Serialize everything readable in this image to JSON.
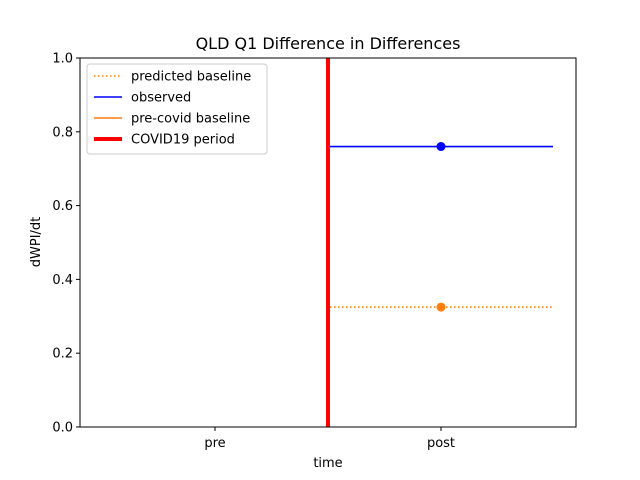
{
  "chart_data": {
    "type": "line",
    "title": "QLD Q1 Difference in Differences",
    "xlabel": "time",
    "ylabel": "dWPI/dt",
    "categories": [
      "pre",
      "post"
    ],
    "ylim": [
      0,
      1.0
    ],
    "yticks": [
      "0.0",
      "0.2",
      "0.4",
      "0.6",
      "0.8",
      "1.0"
    ],
    "grid": false,
    "legend_placement": "top-left",
    "series": [
      {
        "name": "predicted baseline",
        "style": "dotted",
        "color": "#ff7f0e",
        "x_range": [
          "covid",
          "post-end"
        ],
        "value": 0.325,
        "marker_at": "post"
      },
      {
        "name": "observed",
        "style": "solid",
        "color": "#0000ff",
        "x_range": [
          "covid",
          "post-end"
        ],
        "value": 0.76,
        "marker_at": "post"
      },
      {
        "name": "pre-covid baseline",
        "style": "solid",
        "color": "#ff7f0e",
        "points": []
      },
      {
        "name": "COVID19 period",
        "style": "vertical-line",
        "color": "#ff0000",
        "at": "between pre and post"
      }
    ]
  }
}
